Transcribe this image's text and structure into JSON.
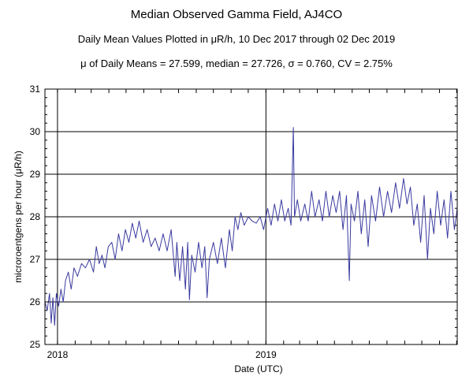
{
  "header": {
    "title": "Median Observed Gamma Field, AJ4CO",
    "subtitle": "Daily Mean Values Plotted in μR/h, 10 Dec 2017 through 02 Dec 2019",
    "stats": "μ of Daily Means = 27.599,   median = 27.726,   σ = 0.760,   CV = 2.75%"
  },
  "chart_data": {
    "type": "line",
    "xlabel": "Date (UTC)",
    "ylabel": "microroentgens per hour (μR/h)",
    "ylim": [
      25,
      31
    ],
    "xlim": [
      "2017-12-10",
      "2019-12-02"
    ],
    "yticks": [
      "25",
      "26",
      "27",
      "28",
      "29",
      "30",
      "31"
    ],
    "xtick_labels": [
      {
        "date": "2018-01-01",
        "label": "2018"
      },
      {
        "date": "2019-01-01",
        "label": "2019"
      }
    ],
    "minor_xticks_monthly": true,
    "grid": true,
    "series": [
      {
        "color": "#3a3aa0",
        "points": [
          [
            "2017-12-10",
            26.0
          ],
          [
            "2017-12-14",
            25.8
          ],
          [
            "2017-12-18",
            26.2
          ],
          [
            "2017-12-21",
            25.5
          ],
          [
            "2017-12-24",
            26.1
          ],
          [
            "2017-12-27",
            25.45
          ],
          [
            "2017-12-30",
            26.2
          ],
          [
            "2018-01-03",
            25.9
          ],
          [
            "2018-01-07",
            26.3
          ],
          [
            "2018-01-11",
            26.0
          ],
          [
            "2018-01-15",
            26.5
          ],
          [
            "2018-01-20",
            26.7
          ],
          [
            "2018-01-25",
            26.3
          ],
          [
            "2018-01-30",
            26.8
          ],
          [
            "2018-02-05",
            26.6
          ],
          [
            "2018-02-12",
            26.9
          ],
          [
            "2018-02-19",
            26.8
          ],
          [
            "2018-02-26",
            27.0
          ],
          [
            "2018-03-05",
            26.7
          ],
          [
            "2018-03-10",
            27.3
          ],
          [
            "2018-03-15",
            26.9
          ],
          [
            "2018-03-20",
            27.1
          ],
          [
            "2018-03-25",
            26.8
          ],
          [
            "2018-03-31",
            27.3
          ],
          [
            "2018-04-06",
            27.4
          ],
          [
            "2018-04-12",
            27.0
          ],
          [
            "2018-04-18",
            27.6
          ],
          [
            "2018-04-24",
            27.2
          ],
          [
            "2018-04-30",
            27.7
          ],
          [
            "2018-05-06",
            27.4
          ],
          [
            "2018-05-12",
            27.85
          ],
          [
            "2018-05-18",
            27.5
          ],
          [
            "2018-05-24",
            27.9
          ],
          [
            "2018-05-31",
            27.4
          ],
          [
            "2018-06-07",
            27.7
          ],
          [
            "2018-06-14",
            27.3
          ],
          [
            "2018-06-21",
            27.5
          ],
          [
            "2018-06-28",
            27.2
          ],
          [
            "2018-07-05",
            27.6
          ],
          [
            "2018-07-12",
            27.2
          ],
          [
            "2018-07-19",
            27.7
          ],
          [
            "2018-07-26",
            26.6
          ],
          [
            "2018-07-29",
            27.4
          ],
          [
            "2018-08-03",
            26.5
          ],
          [
            "2018-08-08",
            27.3
          ],
          [
            "2018-08-13",
            26.3
          ],
          [
            "2018-08-17",
            27.4
          ],
          [
            "2018-08-20",
            26.05
          ],
          [
            "2018-08-24",
            27.1
          ],
          [
            "2018-08-30",
            26.7
          ],
          [
            "2018-09-05",
            27.4
          ],
          [
            "2018-09-11",
            26.8
          ],
          [
            "2018-09-16",
            27.3
          ],
          [
            "2018-09-20",
            26.1
          ],
          [
            "2018-09-24",
            27.0
          ],
          [
            "2018-10-01",
            27.4
          ],
          [
            "2018-10-08",
            26.9
          ],
          [
            "2018-10-15",
            27.5
          ],
          [
            "2018-10-22",
            26.8
          ],
          [
            "2018-10-29",
            27.7
          ],
          [
            "2018-11-03",
            27.2
          ],
          [
            "2018-11-08",
            28.0
          ],
          [
            "2018-11-13",
            27.7
          ],
          [
            "2018-11-18",
            28.1
          ],
          [
            "2018-11-24",
            27.8
          ],
          [
            "2018-12-01",
            28.0
          ],
          [
            "2018-12-08",
            27.9
          ],
          [
            "2018-12-15",
            27.85
          ],
          [
            "2018-12-22",
            28.0
          ],
          [
            "2018-12-28",
            27.7
          ],
          [
            "2019-01-04",
            28.2
          ],
          [
            "2019-01-10",
            27.8
          ],
          [
            "2019-01-16",
            28.3
          ],
          [
            "2019-01-22",
            27.9
          ],
          [
            "2019-01-28",
            28.4
          ],
          [
            "2019-02-03",
            27.9
          ],
          [
            "2019-02-09",
            28.2
          ],
          [
            "2019-02-14",
            27.8
          ],
          [
            "2019-02-18",
            30.1
          ],
          [
            "2019-02-20",
            28.0
          ],
          [
            "2019-02-25",
            28.4
          ],
          [
            "2019-03-03",
            27.9
          ],
          [
            "2019-03-10",
            28.3
          ],
          [
            "2019-03-16",
            27.9
          ],
          [
            "2019-03-22",
            28.6
          ],
          [
            "2019-03-28",
            28.0
          ],
          [
            "2019-04-04",
            28.4
          ],
          [
            "2019-04-10",
            27.9
          ],
          [
            "2019-04-16",
            28.6
          ],
          [
            "2019-04-22",
            28.0
          ],
          [
            "2019-04-28",
            28.5
          ],
          [
            "2019-05-04",
            28.1
          ],
          [
            "2019-05-10",
            28.6
          ],
          [
            "2019-05-16",
            27.7
          ],
          [
            "2019-05-22",
            28.5
          ],
          [
            "2019-05-27",
            26.5
          ],
          [
            "2019-05-30",
            28.3
          ],
          [
            "2019-06-05",
            27.9
          ],
          [
            "2019-06-11",
            28.6
          ],
          [
            "2019-06-17",
            27.6
          ],
          [
            "2019-06-23",
            28.4
          ],
          [
            "2019-06-29",
            27.3
          ],
          [
            "2019-07-05",
            28.5
          ],
          [
            "2019-07-12",
            27.9
          ],
          [
            "2019-07-19",
            28.7
          ],
          [
            "2019-07-26",
            28.0
          ],
          [
            "2019-08-02",
            28.6
          ],
          [
            "2019-08-09",
            28.1
          ],
          [
            "2019-08-16",
            28.8
          ],
          [
            "2019-08-23",
            28.2
          ],
          [
            "2019-08-30",
            28.9
          ],
          [
            "2019-09-05",
            28.3
          ],
          [
            "2019-09-11",
            28.7
          ],
          [
            "2019-09-17",
            27.8
          ],
          [
            "2019-09-23",
            28.3
          ],
          [
            "2019-09-29",
            27.4
          ],
          [
            "2019-10-05",
            28.5
          ],
          [
            "2019-10-11",
            27.0
          ],
          [
            "2019-10-16",
            28.2
          ],
          [
            "2019-10-22",
            27.6
          ],
          [
            "2019-10-28",
            28.6
          ],
          [
            "2019-11-03",
            27.8
          ],
          [
            "2019-11-09",
            28.4
          ],
          [
            "2019-11-15",
            27.5
          ],
          [
            "2019-11-21",
            28.6
          ],
          [
            "2019-11-27",
            27.7
          ],
          [
            "2019-12-02",
            28.2
          ]
        ]
      }
    ]
  }
}
